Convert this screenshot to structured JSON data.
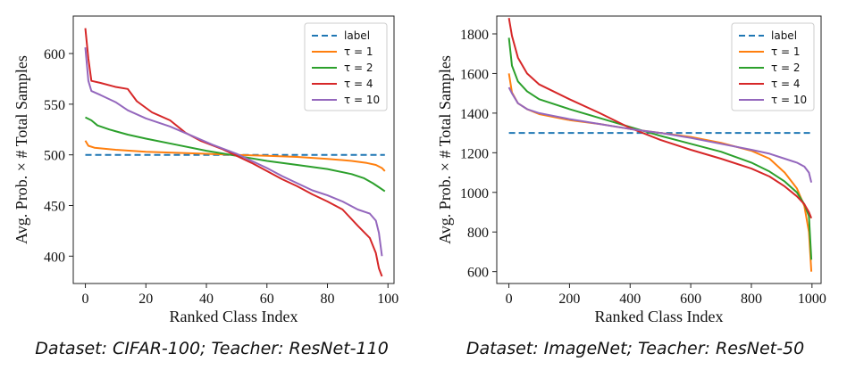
{
  "chart_data": [
    {
      "type": "line",
      "caption": "Dataset: CIFAR-100; Teacher: ResNet-110",
      "xlabel": "Ranked Class Index",
      "ylabel": "Avg. Prob. × # Total Samples",
      "xlim": [
        -4,
        102
      ],
      "ylim": [
        373,
        637
      ],
      "xticks": [
        0,
        20,
        40,
        60,
        80,
        100
      ],
      "yticks": [
        400,
        450,
        500,
        550,
        600
      ],
      "legend": "top-right",
      "grid": false,
      "series": [
        {
          "name": "label",
          "color": "#1f77b4",
          "dash": true,
          "points": [
            [
              0,
              500
            ],
            [
              99,
              500
            ]
          ]
        },
        {
          "name": "τ = 1",
          "color": "#ff7f0e",
          "points": [
            [
              0,
              514
            ],
            [
              1,
              509
            ],
            [
              3,
              507
            ],
            [
              10,
              505
            ],
            [
              20,
              503
            ],
            [
              30,
              502
            ],
            [
              40,
              501
            ],
            [
              50,
              500
            ],
            [
              60,
              499
            ],
            [
              70,
              498
            ],
            [
              80,
              496
            ],
            [
              88,
              494
            ],
            [
              93,
              492
            ],
            [
              96,
              490
            ],
            [
              98,
              487
            ],
            [
              99,
              484
            ]
          ]
        },
        {
          "name": "τ = 2",
          "color": "#2ca02c",
          "points": [
            [
              0,
              537
            ],
            [
              2,
              534
            ],
            [
              4,
              529
            ],
            [
              8,
              525
            ],
            [
              14,
              520
            ],
            [
              20,
              516
            ],
            [
              30,
              510
            ],
            [
              40,
              504
            ],
            [
              50,
              499
            ],
            [
              60,
              494
            ],
            [
              70,
              490
            ],
            [
              80,
              486
            ],
            [
              88,
              481
            ],
            [
              92,
              477
            ],
            [
              95,
              472
            ],
            [
              97,
              468
            ],
            [
              99,
              464
            ]
          ]
        },
        {
          "name": "τ = 4",
          "color": "#d62728",
          "points": [
            [
              0,
              625
            ],
            [
              1,
              595
            ],
            [
              2,
              573
            ],
            [
              5,
              571
            ],
            [
              10,
              567
            ],
            [
              14,
              565
            ],
            [
              17,
              553
            ],
            [
              22,
              542
            ],
            [
              28,
              534
            ],
            [
              33,
              522
            ],
            [
              38,
              514
            ],
            [
              45,
              506
            ],
            [
              50,
              499
            ],
            [
              55,
              492
            ],
            [
              60,
              484
            ],
            [
              65,
              476
            ],
            [
              70,
              469
            ],
            [
              75,
              461
            ],
            [
              80,
              454
            ],
            [
              85,
              446
            ],
            [
              90,
              430
            ],
            [
              94,
              418
            ],
            [
              96,
              403
            ],
            [
              97,
              388
            ],
            [
              98,
              380
            ]
          ]
        },
        {
          "name": "τ = 10",
          "color": "#9467bd",
          "points": [
            [
              0,
              606
            ],
            [
              1,
              573
            ],
            [
              2,
              563
            ],
            [
              5,
              559
            ],
            [
              10,
              552
            ],
            [
              14,
              544
            ],
            [
              20,
              536
            ],
            [
              28,
              528
            ],
            [
              35,
              519
            ],
            [
              42,
              510
            ],
            [
              50,
              501
            ],
            [
              55,
              494
            ],
            [
              60,
              487
            ],
            [
              65,
              479
            ],
            [
              70,
              472
            ],
            [
              75,
              465
            ],
            [
              80,
              460
            ],
            [
              85,
              454
            ],
            [
              90,
              446
            ],
            [
              94,
              442
            ],
            [
              96,
              435
            ],
            [
              97,
              423
            ],
            [
              98,
              400
            ]
          ]
        }
      ]
    },
    {
      "type": "line",
      "caption": "Dataset: ImageNet; Teacher: ResNet-50",
      "xlabel": "Ranked Class Index",
      "ylabel": "Avg. Prob. × # Total Samples",
      "xlim": [
        -40,
        1030
      ],
      "ylim": [
        540,
        1890
      ],
      "xticks": [
        0,
        200,
        400,
        600,
        800,
        1000
      ],
      "yticks": [
        600,
        800,
        1000,
        1200,
        1400,
        1600,
        1800
      ],
      "legend": "top-right",
      "grid": false,
      "series": [
        {
          "name": "label",
          "color": "#1f77b4",
          "dash": true,
          "points": [
            [
              0,
              1300
            ],
            [
              999,
              1300
            ]
          ]
        },
        {
          "name": "τ = 1",
          "color": "#ff7f0e",
          "points": [
            [
              0,
              1600
            ],
            [
              10,
              1505
            ],
            [
              30,
              1450
            ],
            [
              60,
              1420
            ],
            [
              100,
              1395
            ],
            [
              200,
              1365
            ],
            [
              300,
              1345
            ],
            [
              400,
              1320
            ],
            [
              500,
              1300
            ],
            [
              600,
              1280
            ],
            [
              700,
              1250
            ],
            [
              800,
              1210
            ],
            [
              860,
              1170
            ],
            [
              910,
              1100
            ],
            [
              950,
              1020
            ],
            [
              975,
              930
            ],
            [
              990,
              800
            ],
            [
              998,
              600
            ]
          ]
        },
        {
          "name": "τ = 2",
          "color": "#2ca02c",
          "points": [
            [
              0,
              1780
            ],
            [
              10,
              1640
            ],
            [
              30,
              1560
            ],
            [
              60,
              1510
            ],
            [
              100,
              1470
            ],
            [
              200,
              1420
            ],
            [
              300,
              1375
            ],
            [
              400,
              1330
            ],
            [
              500,
              1285
            ],
            [
              600,
              1245
            ],
            [
              700,
              1205
            ],
            [
              800,
              1150
            ],
            [
              860,
              1105
            ],
            [
              910,
              1055
            ],
            [
              950,
              1000
            ],
            [
              975,
              940
            ],
            [
              990,
              880
            ],
            [
              998,
              660
            ]
          ]
        },
        {
          "name": "τ = 4",
          "color": "#d62728",
          "points": [
            [
              0,
              1880
            ],
            [
              10,
              1790
            ],
            [
              30,
              1680
            ],
            [
              60,
              1600
            ],
            [
              100,
              1545
            ],
            [
              200,
              1470
            ],
            [
              300,
              1400
            ],
            [
              400,
              1325
            ],
            [
              500,
              1265
            ],
            [
              600,
              1215
            ],
            [
              700,
              1170
            ],
            [
              800,
              1120
            ],
            [
              860,
              1080
            ],
            [
              910,
              1030
            ],
            [
              950,
              980
            ],
            [
              975,
              940
            ],
            [
              990,
              900
            ],
            [
              998,
              870
            ]
          ]
        },
        {
          "name": "τ = 10",
          "color": "#9467bd",
          "points": [
            [
              0,
              1530
            ],
            [
              10,
              1500
            ],
            [
              30,
              1450
            ],
            [
              60,
              1420
            ],
            [
              100,
              1400
            ],
            [
              200,
              1370
            ],
            [
              300,
              1345
            ],
            [
              400,
              1320
            ],
            [
              500,
              1300
            ],
            [
              600,
              1275
            ],
            [
              700,
              1245
            ],
            [
              800,
              1215
            ],
            [
              860,
              1195
            ],
            [
              910,
              1170
            ],
            [
              950,
              1150
            ],
            [
              975,
              1130
            ],
            [
              990,
              1100
            ],
            [
              998,
              1050
            ]
          ]
        }
      ]
    }
  ]
}
